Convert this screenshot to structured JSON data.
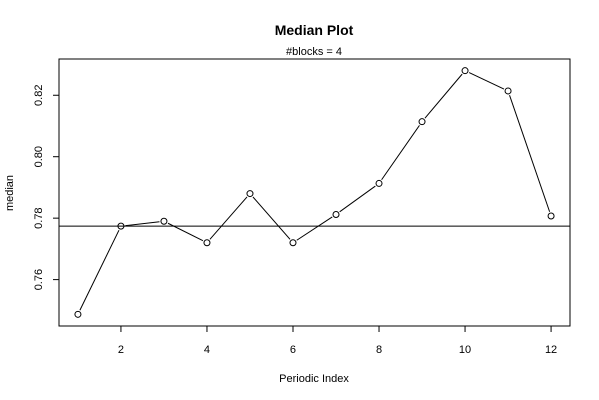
{
  "chart_data": {
    "type": "line",
    "title": "Median Plot",
    "subtitle": "#blocks =  4",
    "xlabel": "Periodic Index",
    "ylabel": "median",
    "x": [
      1,
      2,
      3,
      4,
      5,
      6,
      7,
      8,
      9,
      10,
      11,
      12
    ],
    "y": [
      0.7487,
      0.7774,
      0.779,
      0.772,
      0.788,
      0.772,
      0.7812,
      0.7913,
      0.8114,
      0.828,
      0.8214,
      0.7807
    ],
    "reference_line": 0.7774,
    "xlim": [
      0.56,
      12.44
    ],
    "ylim": [
      0.7449,
      0.8318
    ],
    "x_ticks": [
      2,
      4,
      6,
      8,
      10,
      12
    ],
    "y_ticks": [
      0.76,
      0.78,
      0.8,
      0.82
    ],
    "x_tick_labels": [
      "2",
      "4",
      "6",
      "8",
      "10",
      "12"
    ],
    "y_tick_labels": [
      "0.76",
      "0.78",
      "0.80",
      "0.82"
    ],
    "marker": "open-circle",
    "line_color": "#000000",
    "grid": false,
    "legend": "none"
  }
}
